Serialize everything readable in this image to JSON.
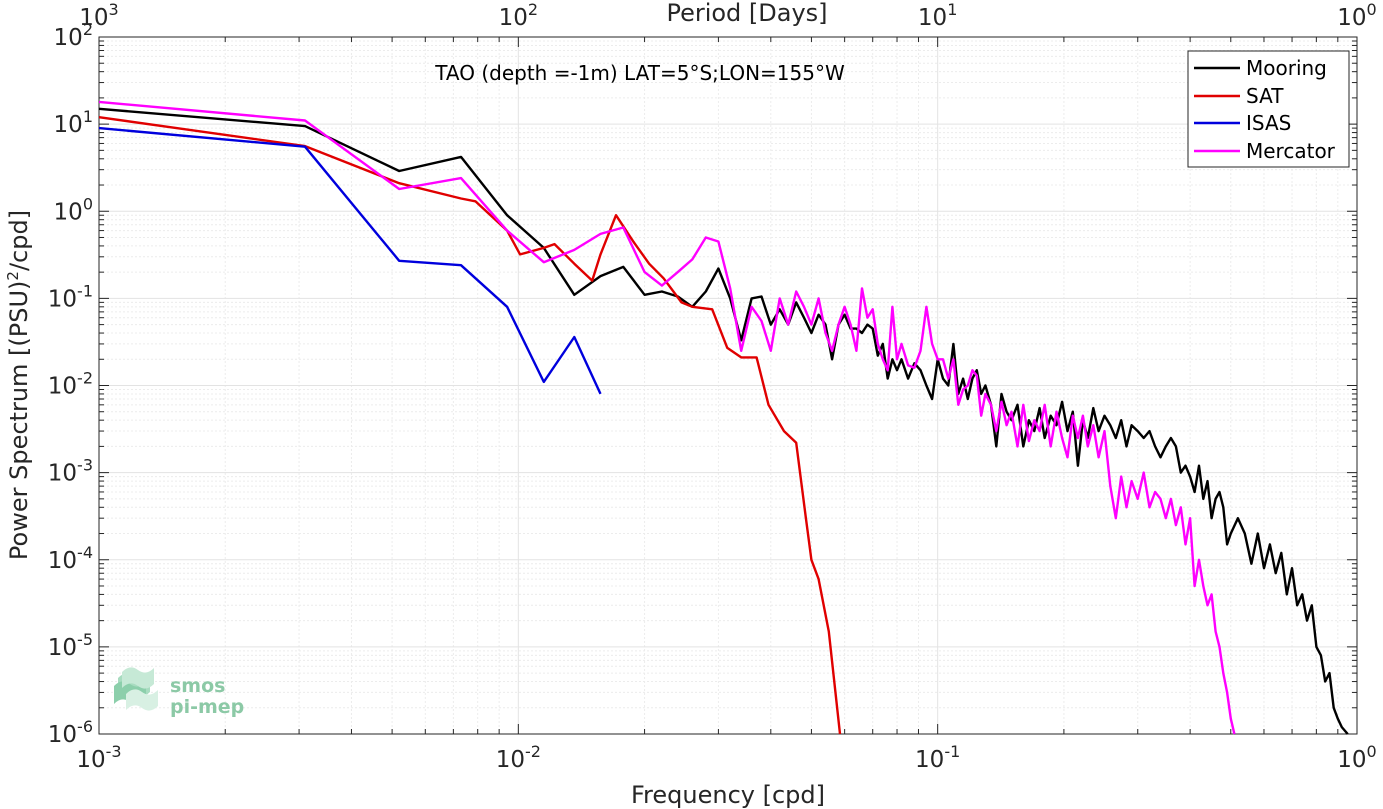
{
  "chart_data": {
    "type": "line",
    "title": "TAO (depth =-1m) LAT=5°S;LON=155°W",
    "xlabel": "Frequency [cpd]",
    "ylabel": "Power Spectrum [(PSU)",
    "ylabel_sup": "2",
    "ylabel_end": "/cpd]",
    "top_xlabel": "Period [Days]",
    "x_scale": "log",
    "y_scale": "log",
    "xlim": [
      0.001,
      1
    ],
    "ylim": [
      1e-06,
      100
    ],
    "grid": true,
    "legend_position": "top-right",
    "x_ticks": [
      {
        "value": 0.001,
        "base": "10",
        "exp": "-3"
      },
      {
        "value": 0.01,
        "base": "10",
        "exp": "-2"
      },
      {
        "value": 0.1,
        "base": "10",
        "exp": "-1"
      },
      {
        "value": 1,
        "base": "10",
        "exp": "0"
      }
    ],
    "top_ticks": [
      {
        "value": 1000,
        "base": "10",
        "exp": "3"
      },
      {
        "value": 100,
        "base": "10",
        "exp": "2"
      },
      {
        "value": 10,
        "base": "10",
        "exp": "1"
      },
      {
        "value": 1,
        "base": "10",
        "exp": "0"
      }
    ],
    "y_ticks": [
      {
        "value": 100,
        "base": "10",
        "exp": "2"
      },
      {
        "value": 10,
        "base": "10",
        "exp": "1"
      },
      {
        "value": 1,
        "base": "10",
        "exp": "0"
      },
      {
        "value": 0.1,
        "base": "10",
        "exp": "-1"
      },
      {
        "value": 0.01,
        "base": "10",
        "exp": "-2"
      },
      {
        "value": 0.001,
        "base": "10",
        "exp": "-3"
      },
      {
        "value": 0.0001,
        "base": "10",
        "exp": "-4"
      },
      {
        "value": 1e-05,
        "base": "10",
        "exp": "-5"
      },
      {
        "value": 1e-06,
        "base": "10",
        "exp": "-6"
      }
    ],
    "series": [
      {
        "name": "Mooring",
        "color": "#000000",
        "points": [
          [
            0.001,
            15
          ],
          [
            0.0031,
            9.5
          ],
          [
            0.0052,
            2.9
          ],
          [
            0.0073,
            4.2
          ],
          [
            0.0094,
            0.9
          ],
          [
            0.0115,
            0.38
          ],
          [
            0.0136,
            0.11
          ],
          [
            0.0157,
            0.18
          ],
          [
            0.0178,
            0.23
          ],
          [
            0.02,
            0.11
          ],
          [
            0.022,
            0.12
          ],
          [
            0.024,
            0.105
          ],
          [
            0.026,
            0.08
          ],
          [
            0.028,
            0.12
          ],
          [
            0.03,
            0.22
          ],
          [
            0.032,
            0.1
          ],
          [
            0.034,
            0.033
          ],
          [
            0.036,
            0.1
          ],
          [
            0.038,
            0.105
          ],
          [
            0.04,
            0.05
          ],
          [
            0.042,
            0.075
          ],
          [
            0.044,
            0.05
          ],
          [
            0.046,
            0.09
          ],
          [
            0.048,
            0.06
          ],
          [
            0.05,
            0.04
          ],
          [
            0.052,
            0.065
          ],
          [
            0.054,
            0.05
          ],
          [
            0.056,
            0.02
          ],
          [
            0.058,
            0.05
          ],
          [
            0.06,
            0.065
          ],
          [
            0.062,
            0.045
          ],
          [
            0.064,
            0.045
          ],
          [
            0.066,
            0.04
          ],
          [
            0.068,
            0.05
          ],
          [
            0.07,
            0.045
          ],
          [
            0.072,
            0.022
          ],
          [
            0.074,
            0.03
          ],
          [
            0.076,
            0.012
          ],
          [
            0.078,
            0.02
          ],
          [
            0.08,
            0.015
          ],
          [
            0.082,
            0.02
          ],
          [
            0.085,
            0.012
          ],
          [
            0.088,
            0.018
          ],
          [
            0.091,
            0.015
          ],
          [
            0.094,
            0.01
          ],
          [
            0.097,
            0.007
          ],
          [
            0.1,
            0.02
          ],
          [
            0.103,
            0.012
          ],
          [
            0.106,
            0.01
          ],
          [
            0.109,
            0.03
          ],
          [
            0.112,
            0.008
          ],
          [
            0.115,
            0.012
          ],
          [
            0.118,
            0.007
          ],
          [
            0.121,
            0.012
          ],
          [
            0.124,
            0.015
          ],
          [
            0.127,
            0.008
          ],
          [
            0.13,
            0.01
          ],
          [
            0.134,
            0.006
          ],
          [
            0.138,
            0.002
          ],
          [
            0.142,
            0.008
          ],
          [
            0.146,
            0.005
          ],
          [
            0.15,
            0.004
          ],
          [
            0.155,
            0.006
          ],
          [
            0.16,
            0.002
          ],
          [
            0.165,
            0.004
          ],
          [
            0.17,
            0.003
          ],
          [
            0.175,
            0.0055
          ],
          [
            0.18,
            0.0025
          ],
          [
            0.186,
            0.0045
          ],
          [
            0.192,
            0.0035
          ],
          [
            0.198,
            0.0065
          ],
          [
            0.204,
            0.003
          ],
          [
            0.21,
            0.005
          ],
          [
            0.216,
            0.0012
          ],
          [
            0.222,
            0.004
          ],
          [
            0.228,
            0.0025
          ],
          [
            0.235,
            0.0055
          ],
          [
            0.242,
            0.003
          ],
          [
            0.25,
            0.0045
          ],
          [
            0.258,
            0.0035
          ],
          [
            0.266,
            0.0025
          ],
          [
            0.274,
            0.004
          ],
          [
            0.282,
            0.002
          ],
          [
            0.29,
            0.0035
          ],
          [
            0.3,
            0.003
          ],
          [
            0.31,
            0.0025
          ],
          [
            0.32,
            0.003
          ],
          [
            0.33,
            0.002
          ],
          [
            0.34,
            0.0015
          ],
          [
            0.35,
            0.002
          ],
          [
            0.36,
            0.0025
          ],
          [
            0.37,
            0.002
          ],
          [
            0.38,
            0.001
          ],
          [
            0.39,
            0.0012
          ],
          [
            0.4,
            0.0009
          ],
          [
            0.41,
            0.0006
          ],
          [
            0.42,
            0.0012
          ],
          [
            0.43,
            0.0005
          ],
          [
            0.44,
            0.0008
          ],
          [
            0.45,
            0.0003
          ],
          [
            0.46,
            0.0005
          ],
          [
            0.47,
            0.0006
          ],
          [
            0.48,
            0.0004
          ],
          [
            0.49,
            0.00015
          ],
          [
            0.5,
            0.0002
          ],
          [
            0.52,
            0.0003
          ],
          [
            0.54,
            0.0002
          ],
          [
            0.56,
            9e-05
          ],
          [
            0.58,
            0.0002
          ],
          [
            0.6,
            8e-05
          ],
          [
            0.62,
            0.00015
          ],
          [
            0.64,
            7e-05
          ],
          [
            0.66,
            0.00012
          ],
          [
            0.68,
            4e-05
          ],
          [
            0.7,
            8e-05
          ],
          [
            0.72,
            3e-05
          ],
          [
            0.74,
            4e-05
          ],
          [
            0.76,
            2e-05
          ],
          [
            0.78,
            3e-05
          ],
          [
            0.8,
            1e-05
          ],
          [
            0.82,
            8e-06
          ],
          [
            0.84,
            4e-06
          ],
          [
            0.86,
            5e-06
          ],
          [
            0.88,
            2e-06
          ],
          [
            0.9,
            1.5e-06
          ],
          [
            0.92,
            1.2e-06
          ],
          [
            0.95,
            1e-06
          ]
        ]
      },
      {
        "name": "SAT",
        "color": "#e00000",
        "points": [
          [
            0.001,
            12
          ],
          [
            0.0031,
            5.6
          ],
          [
            0.0052,
            2.1
          ],
          [
            0.0073,
            1.4
          ],
          [
            0.0079,
            1.3
          ],
          [
            0.0094,
            0.6
          ],
          [
            0.0101,
            0.32
          ],
          [
            0.0115,
            0.38
          ],
          [
            0.0122,
            0.42
          ],
          [
            0.0136,
            0.25
          ],
          [
            0.015,
            0.16
          ],
          [
            0.0157,
            0.32
          ],
          [
            0.0171,
            0.9
          ],
          [
            0.0188,
            0.45
          ],
          [
            0.0205,
            0.25
          ],
          [
            0.0222,
            0.17
          ],
          [
            0.0245,
            0.09
          ],
          [
            0.026,
            0.08
          ],
          [
            0.029,
            0.075
          ],
          [
            0.0315,
            0.027
          ],
          [
            0.034,
            0.021
          ],
          [
            0.037,
            0.021
          ],
          [
            0.0395,
            0.006
          ],
          [
            0.043,
            0.003
          ],
          [
            0.046,
            0.0022
          ],
          [
            0.0485,
            0.0003
          ],
          [
            0.05,
            0.0001
          ],
          [
            0.052,
            6e-05
          ],
          [
            0.055,
            1.5e-05
          ],
          [
            0.0585,
            1e-06
          ]
        ]
      },
      {
        "name": "ISAS",
        "color": "#0000dd",
        "points": [
          [
            0.001,
            9
          ],
          [
            0.0031,
            5.5
          ],
          [
            0.0052,
            0.27
          ],
          [
            0.0073,
            0.24
          ],
          [
            0.0094,
            0.08
          ],
          [
            0.0115,
            0.011
          ],
          [
            0.0136,
            0.036
          ],
          [
            0.0157,
            0.008
          ]
        ]
      },
      {
        "name": "Mercator",
        "color": "#ff00ff",
        "points": [
          [
            0.001,
            18
          ],
          [
            0.0031,
            11
          ],
          [
            0.0052,
            1.8
          ],
          [
            0.0073,
            2.4
          ],
          [
            0.0094,
            0.6
          ],
          [
            0.0115,
            0.26
          ],
          [
            0.0136,
            0.36
          ],
          [
            0.0157,
            0.55
          ],
          [
            0.0178,
            0.65
          ],
          [
            0.02,
            0.2
          ],
          [
            0.022,
            0.14
          ],
          [
            0.024,
            0.2
          ],
          [
            0.026,
            0.28
          ],
          [
            0.028,
            0.5
          ],
          [
            0.03,
            0.45
          ],
          [
            0.032,
            0.13
          ],
          [
            0.034,
            0.025
          ],
          [
            0.036,
            0.08
          ],
          [
            0.038,
            0.055
          ],
          [
            0.04,
            0.025
          ],
          [
            0.042,
            0.1
          ],
          [
            0.044,
            0.05
          ],
          [
            0.046,
            0.12
          ],
          [
            0.048,
            0.08
          ],
          [
            0.05,
            0.05
          ],
          [
            0.052,
            0.1
          ],
          [
            0.054,
            0.04
          ],
          [
            0.056,
            0.025
          ],
          [
            0.058,
            0.05
          ],
          [
            0.06,
            0.08
          ],
          [
            0.062,
            0.05
          ],
          [
            0.064,
            0.025
          ],
          [
            0.066,
            0.13
          ],
          [
            0.068,
            0.06
          ],
          [
            0.07,
            0.075
          ],
          [
            0.072,
            0.03
          ],
          [
            0.074,
            0.02
          ],
          [
            0.076,
            0.015
          ],
          [
            0.078,
            0.08
          ],
          [
            0.08,
            0.02
          ],
          [
            0.082,
            0.03
          ],
          [
            0.085,
            0.017
          ],
          [
            0.088,
            0.016
          ],
          [
            0.091,
            0.025
          ],
          [
            0.094,
            0.08
          ],
          [
            0.097,
            0.03
          ],
          [
            0.1,
            0.02
          ],
          [
            0.103,
            0.02
          ],
          [
            0.106,
            0.012
          ],
          [
            0.109,
            0.02
          ],
          [
            0.112,
            0.006
          ],
          [
            0.115,
            0.009
          ],
          [
            0.118,
            0.01
          ],
          [
            0.121,
            0.015
          ],
          [
            0.124,
            0.013
          ],
          [
            0.127,
            0.0045
          ],
          [
            0.13,
            0.008
          ],
          [
            0.134,
            0.006
          ],
          [
            0.138,
            0.003
          ],
          [
            0.142,
            0.0065
          ],
          [
            0.146,
            0.0035
          ],
          [
            0.15,
            0.005
          ],
          [
            0.155,
            0.002
          ],
          [
            0.16,
            0.006
          ],
          [
            0.165,
            0.0023
          ],
          [
            0.17,
            0.004
          ],
          [
            0.175,
            0.003
          ],
          [
            0.18,
            0.006
          ],
          [
            0.186,
            0.002
          ],
          [
            0.192,
            0.005
          ],
          [
            0.198,
            0.0025
          ],
          [
            0.204,
            0.0015
          ],
          [
            0.21,
            0.0045
          ],
          [
            0.216,
            0.0025
          ],
          [
            0.222,
            0.0045
          ],
          [
            0.228,
            0.002
          ],
          [
            0.235,
            0.0035
          ],
          [
            0.242,
            0.0015
          ],
          [
            0.25,
            0.003
          ],
          [
            0.258,
            0.0007
          ],
          [
            0.266,
            0.0003
          ],
          [
            0.274,
            0.0009
          ],
          [
            0.282,
            0.0004
          ],
          [
            0.29,
            0.0008
          ],
          [
            0.3,
            0.0005
          ],
          [
            0.31,
            0.001
          ],
          [
            0.32,
            0.0004
          ],
          [
            0.33,
            0.0006
          ],
          [
            0.34,
            0.0005
          ],
          [
            0.35,
            0.0003
          ],
          [
            0.36,
            0.0005
          ],
          [
            0.37,
            0.00025
          ],
          [
            0.38,
            0.0004
          ],
          [
            0.39,
            0.00015
          ],
          [
            0.4,
            0.0003
          ],
          [
            0.41,
            5e-05
          ],
          [
            0.42,
            0.0001
          ],
          [
            0.43,
            5e-05
          ],
          [
            0.44,
            3e-05
          ],
          [
            0.45,
            4e-05
          ],
          [
            0.46,
            1.5e-05
          ],
          [
            0.47,
            1e-05
          ],
          [
            0.48,
            5e-06
          ],
          [
            0.49,
            3e-06
          ],
          [
            0.5,
            1.5e-06
          ],
          [
            0.51,
            1e-06
          ]
        ]
      }
    ]
  },
  "logo": {
    "line1": "smos",
    "line2": "pi-mep"
  }
}
